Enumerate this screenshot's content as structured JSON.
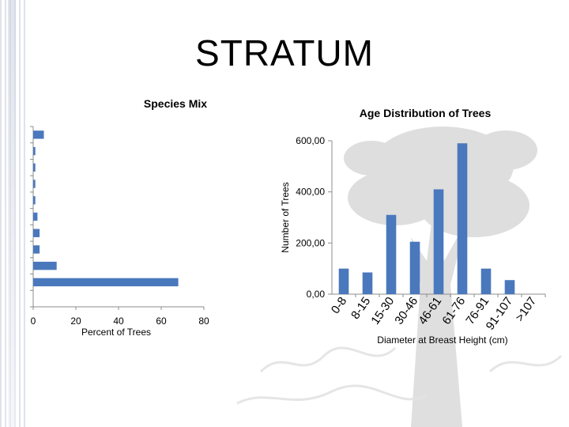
{
  "page": {
    "title": "STRATUM"
  },
  "colors": {
    "bar": "#4a78bd",
    "axis": "#8c8c8c",
    "watermark": "#d9d9d9"
  },
  "chart_data": [
    {
      "type": "bar",
      "orientation": "horizontal",
      "title": "Species Mix",
      "xlabel": "Percent of Trees",
      "ylabel": "",
      "xlim": [
        0,
        80
      ],
      "x_ticks": [
        "0",
        "20",
        "40",
        "60",
        "80"
      ],
      "categories": [
        "",
        "",
        "",
        "",
        "",
        "",
        "",
        "",
        "",
        "",
        ""
      ],
      "values": [
        5,
        1,
        1,
        1,
        1,
        2,
        3,
        3,
        11,
        68,
        0
      ],
      "grid": false
    },
    {
      "type": "bar",
      "orientation": "vertical",
      "title": "Age Distribution of Trees",
      "xlabel": "Diameter at Breast Height (cm)",
      "ylabel": "Number of Trees",
      "ylim": [
        0,
        600
      ],
      "y_ticks": [
        "0,00",
        "200,00",
        "400,00",
        "600,00"
      ],
      "categories": [
        "0-8",
        "8-15",
        "15-30",
        "30-46",
        "46-61",
        "61-76",
        "76-91",
        "91-107",
        ">107"
      ],
      "values": [
        100,
        85,
        310,
        205,
        410,
        590,
        100,
        55,
        0
      ],
      "grid": false
    }
  ]
}
